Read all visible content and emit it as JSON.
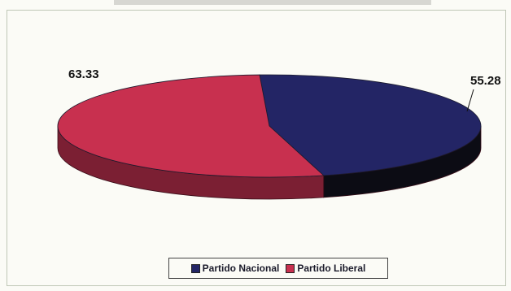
{
  "chart_data": {
    "type": "pie",
    "title": "",
    "labels": [
      "Partido Nacional",
      "Partido Liberal"
    ],
    "values": [
      55.28,
      63.33
    ],
    "colors": [
      "#232565",
      "#c8304f"
    ],
    "side_colors": [
      "#0c0c14",
      "#7b1f33"
    ],
    "data_labels": [
      "55.28",
      "63.33"
    ],
    "legend_position": "bottom",
    "style": "3d"
  }
}
